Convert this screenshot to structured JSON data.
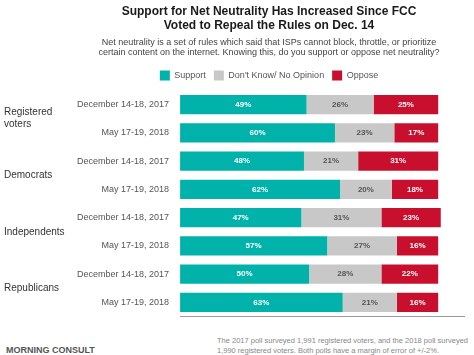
{
  "chart_data": {
    "type": "bar",
    "orientation": "horizontal",
    "stacked": true,
    "title": "Support for Net Neutrality Has Increased Since FCC\nVoted to Repeal the Rules on Dec. 14",
    "subtitle": "Net neutrality is a set of rules which said that ISPs cannot block, throttle, or prioritize\ncertain content on the internet. Knowing this, do you support or oppose net neutrality?",
    "categories": [
      "December 14-18, 2017",
      "May 17-19, 2018",
      "December 14-18, 2017",
      "May 17-19, 2018",
      "December 14-18, 2017",
      "May 17-19, 2018",
      "December 14-18, 2017",
      "May 17-19, 2018"
    ],
    "groups": [
      {
        "label": "Registered\nvoters",
        "count": 2
      },
      {
        "label": "Democrats",
        "count": 2
      },
      {
        "label": "Independents",
        "count": 2
      },
      {
        "label": "Republicans",
        "count": 2
      }
    ],
    "series": [
      {
        "name": "Support",
        "color": "#00B2A9",
        "values": [
          49,
          60,
          48,
          62,
          47,
          57,
          50,
          63
        ],
        "value_labels": [
          "49%",
          "60%",
          "48%",
          "62%",
          "47%",
          "57%",
          "50%",
          "63%"
        ]
      },
      {
        "name": "Don't Know/ No Opinion",
        "color": "#C8C8C8",
        "values": [
          26,
          23,
          21,
          20,
          31,
          27,
          28,
          21
        ],
        "value_labels": [
          "26%",
          "23%",
          "21%",
          "20%",
          "31%",
          "27%",
          "28%",
          "21%"
        ]
      },
      {
        "name": "Oppose",
        "color": "#C8102E",
        "values": [
          25,
          17,
          31,
          18,
          23,
          16,
          22,
          16
        ],
        "value_labels": [
          "25%",
          "17%",
          "31%",
          "18%",
          "23%",
          "16%",
          "22%",
          "16%"
        ]
      }
    ],
    "xlim": [
      0,
      110
    ],
    "data_labels": true,
    "tick_labels": "y",
    "grid": false,
    "legend": "top",
    "source": "MORNING CONSULT",
    "footer": "The 2017 poll surveyed 1,991 registered voters, and the 2018 poll surveyed\n1,990 registered voters. Both polls have a margin of error of +/-2%."
  }
}
